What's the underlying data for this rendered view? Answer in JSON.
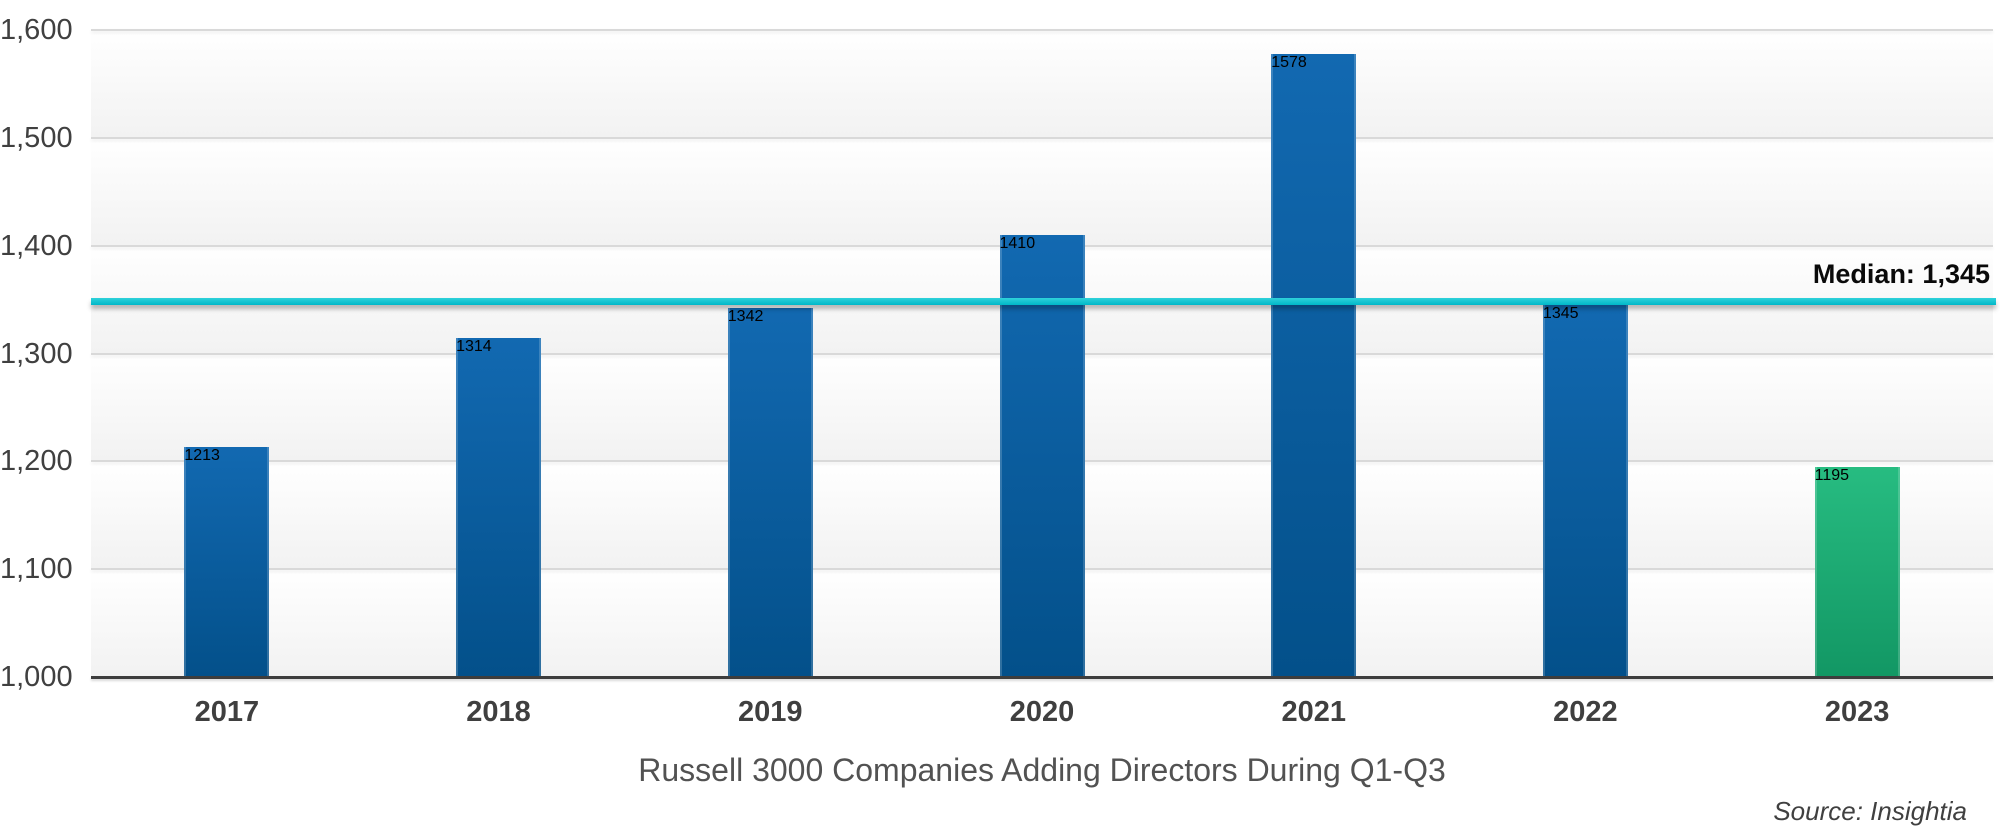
{
  "chart_data": {
    "type": "bar",
    "title": "Russell 3000 Companies Adding Directors During Q1-Q3",
    "source": "Source: Insightia",
    "categories": [
      "2017",
      "2018",
      "2019",
      "2020",
      "2021",
      "2022",
      "2023"
    ],
    "values": [
      1213,
      1314,
      1342,
      1410,
      1578,
      1345,
      1195
    ],
    "median": {
      "label": "Median: 1,345",
      "value": 1345
    },
    "xlabel": "",
    "ylabel": "",
    "ylim": [
      1000,
      1600
    ],
    "ytick_step": 100,
    "ytick_labels": [
      "1,000",
      "1,100",
      "1,200",
      "1,300",
      "1,400",
      "1,500",
      "1,600"
    ],
    "grid": "horizontal",
    "legend": "none",
    "highlighted_category": "2023"
  },
  "colors": {
    "bar_blue_top": "#1269b1",
    "bar_blue_bottom": "#03508a",
    "bar_green_top": "#27bc81",
    "bar_green_bottom": "#129764",
    "median_line_top": "#2fd2da",
    "median_line_bottom": "#00b7c8",
    "gridline": "#d9d9d9",
    "axis_line": "#3d3d3d",
    "text_gray": "#404040",
    "title_gray": "#525252",
    "median_text": "#0a0a0a"
  }
}
